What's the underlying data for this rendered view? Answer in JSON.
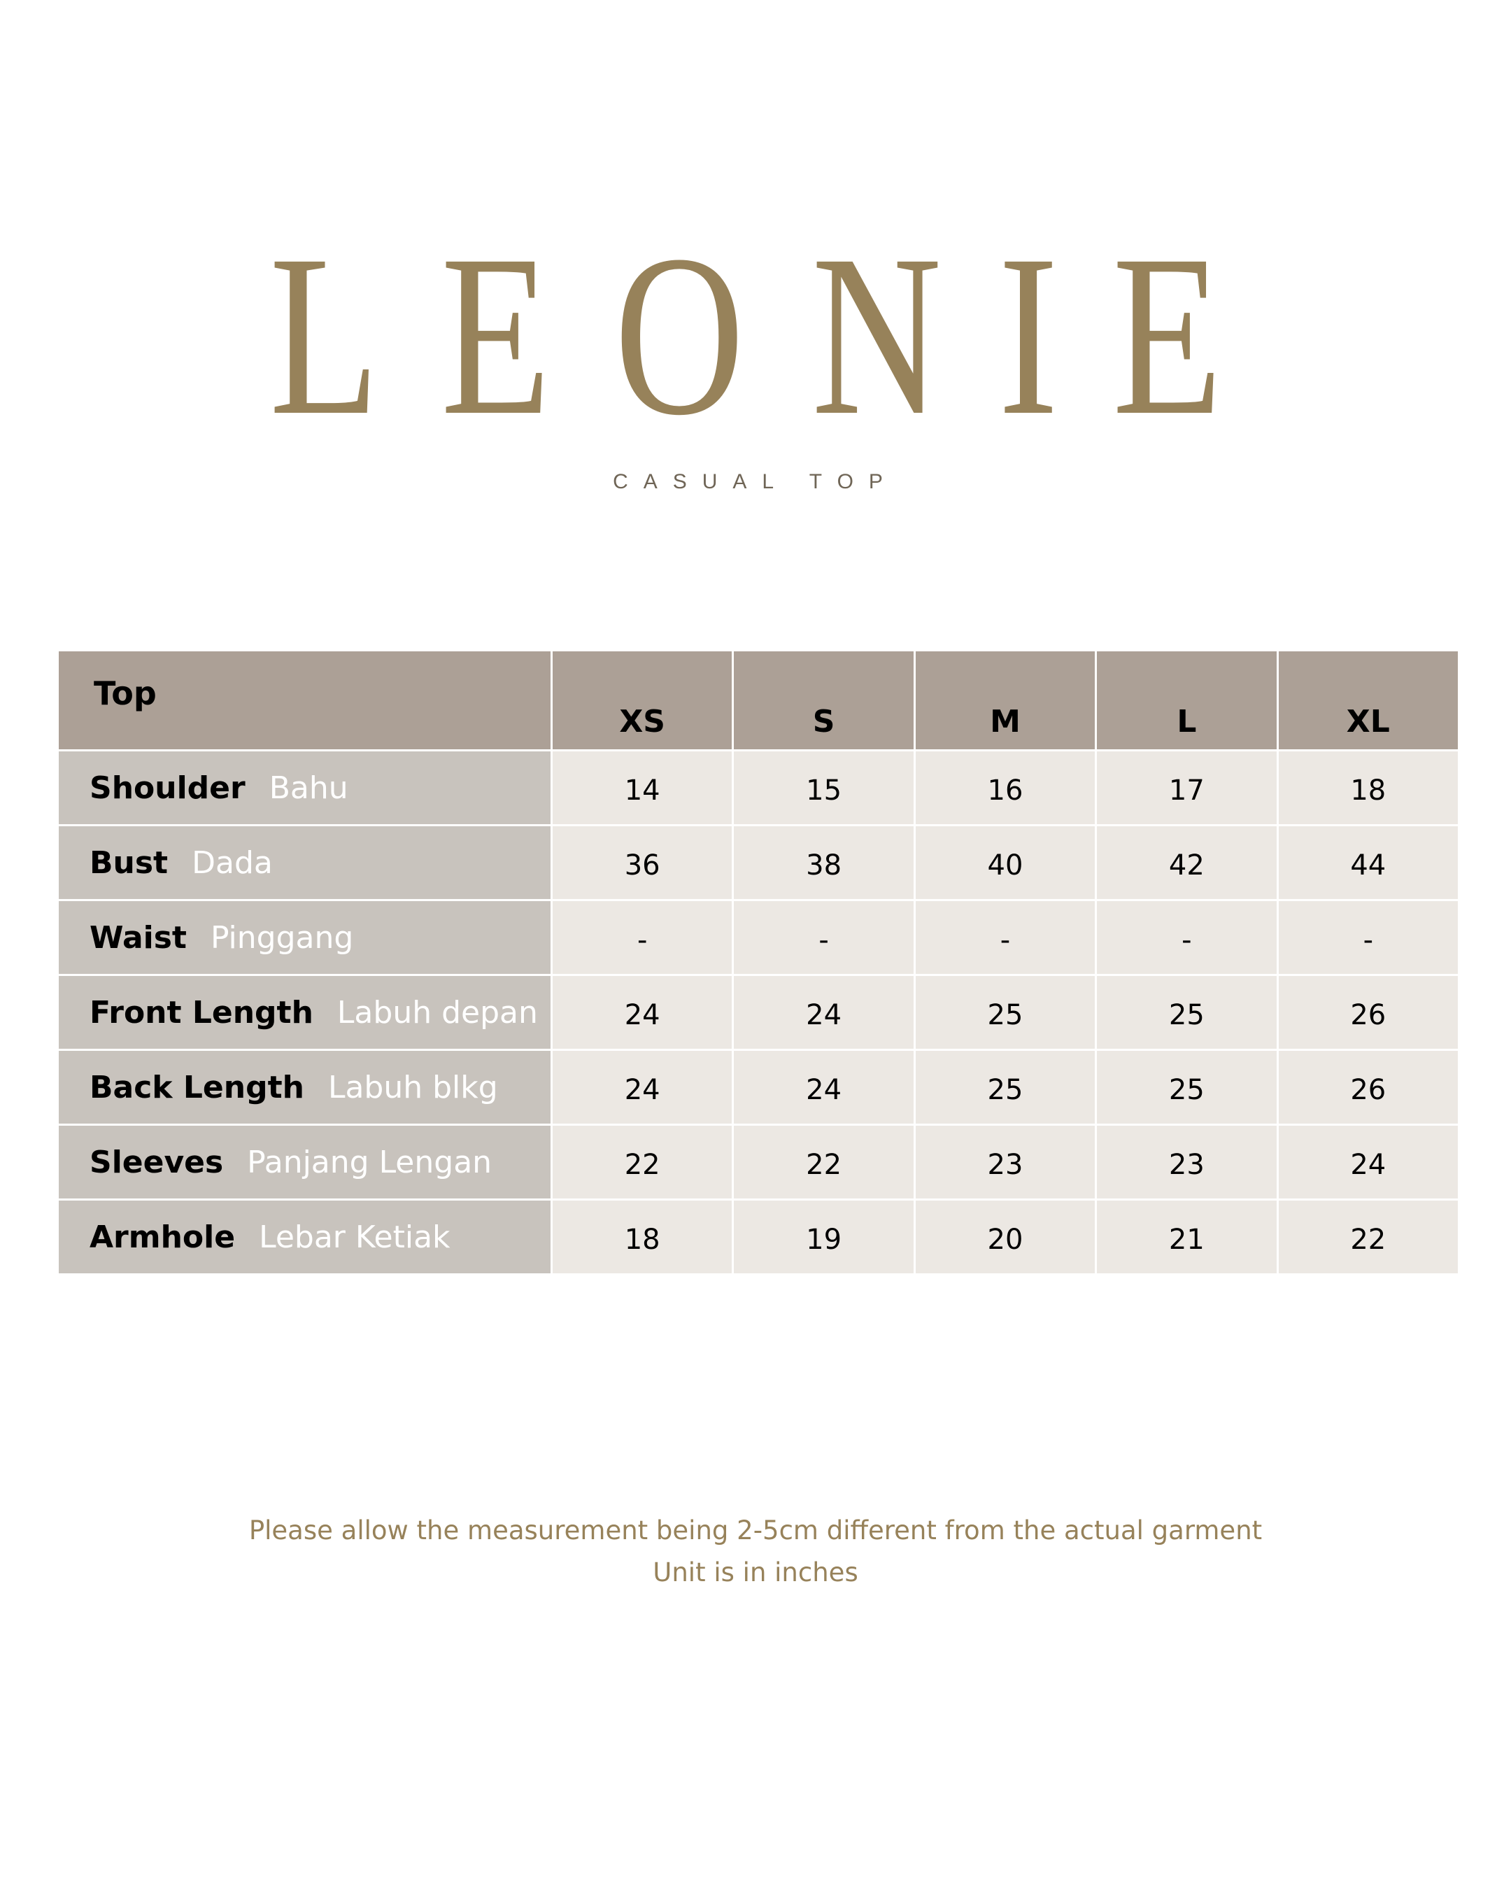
{
  "brand": {
    "letters": [
      "L",
      "E",
      "O",
      "N",
      "I",
      "E"
    ],
    "subtitle": "CASUAL TOP",
    "color": "#97825a"
  },
  "table": {
    "corner": "Top",
    "sizes": [
      "XS",
      "S",
      "M",
      "L",
      "XL"
    ],
    "rows": [
      {
        "en": "Shoulder",
        "ms": "Bahu",
        "values": [
          "14",
          "15",
          "16",
          "17",
          "18"
        ]
      },
      {
        "en": "Bust",
        "ms": "Dada",
        "values": [
          "36",
          "38",
          "40",
          "42",
          "44"
        ]
      },
      {
        "en": "Waist",
        "ms": "Pinggang",
        "values": [
          "-",
          "-",
          "-",
          "-",
          "-"
        ]
      },
      {
        "en": "Front Length",
        "ms": "Labuh depan",
        "values": [
          "24",
          "24",
          "25",
          "25",
          "26"
        ]
      },
      {
        "en": "Back Length",
        "ms": "Labuh blkg",
        "values": [
          "24",
          "24",
          "25",
          "25",
          "26"
        ]
      },
      {
        "en": "Sleeves",
        "ms": "Panjang Lengan",
        "values": [
          "22",
          "22",
          "23",
          "23",
          "24"
        ]
      },
      {
        "en": "Armhole",
        "ms": "Lebar Ketiak",
        "values": [
          "18",
          "19",
          "20",
          "21",
          "22"
        ]
      }
    ],
    "colors": {
      "header": "#aca096",
      "label": "#c8c3bd",
      "cell": "#ece8e3"
    }
  },
  "footer": {
    "line1": "Please allow the measurement being 2-5cm different from the actual garment",
    "line2": "Unit is in inches"
  }
}
